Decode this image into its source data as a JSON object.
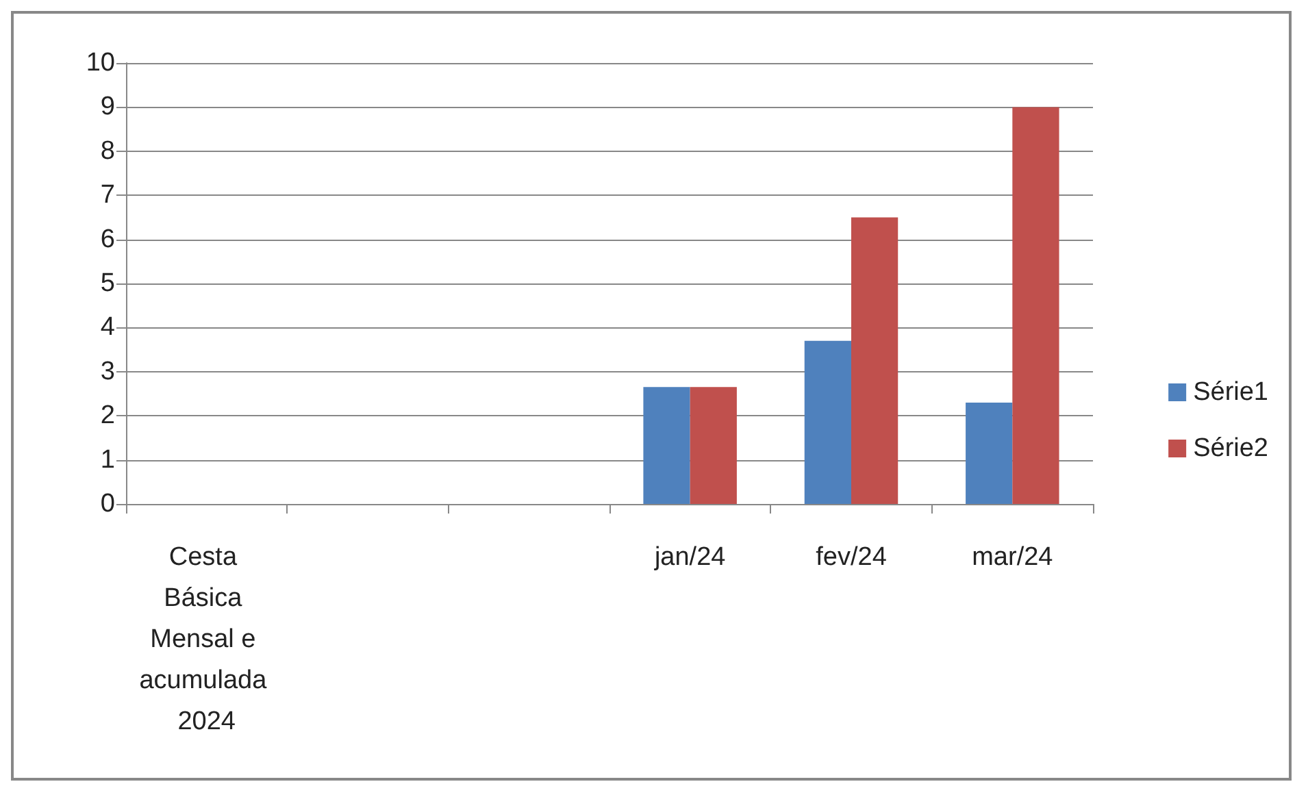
{
  "chart_data": {
    "type": "bar",
    "categories": [
      "Cesta Básica Mensal e acumulada 2024",
      null,
      null,
      "jan/24",
      "fev/24",
      "mar/24"
    ],
    "series": [
      {
        "name": "Série1",
        "color": "#4f81bd",
        "values": [
          null,
          null,
          null,
          2.65,
          3.7,
          2.3
        ]
      },
      {
        "name": "Série2",
        "color": "#c0504d",
        "values": [
          null,
          null,
          null,
          2.65,
          6.5,
          9
        ]
      }
    ],
    "ylim": [
      0,
      10
    ],
    "yticks": [
      0,
      1,
      2,
      3,
      4,
      5,
      6,
      7,
      8,
      9,
      10
    ],
    "grid": "y",
    "legend": "right"
  }
}
